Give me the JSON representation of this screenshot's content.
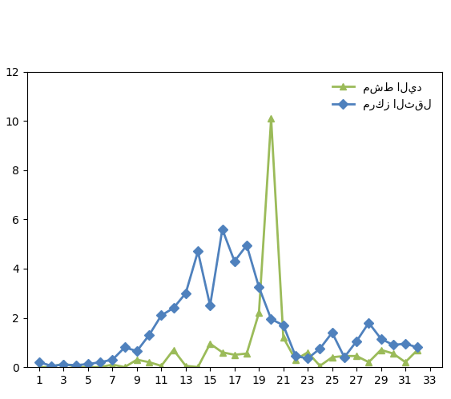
{
  "chart_data": {
    "type": "line",
    "x": [
      1,
      2,
      3,
      4,
      5,
      6,
      7,
      8,
      9,
      10,
      11,
      12,
      13,
      14,
      15,
      16,
      17,
      18,
      19,
      20,
      21,
      22,
      23,
      24,
      25,
      26,
      27,
      28,
      29,
      30,
      31,
      32
    ],
    "series": [
      {
        "name": "مشط اليد",
        "color": "#9bbb59",
        "marker": "triangle",
        "line_style": "solid",
        "values": [
          0,
          0,
          0.15,
          0,
          0,
          0,
          0.1,
          0,
          0.3,
          0.2,
          0.05,
          0.7,
          0.05,
          0,
          0.95,
          0.6,
          0.5,
          0.55,
          2.2,
          10.1,
          1.2,
          0.3,
          0.6,
          0.05,
          0.4,
          0.45,
          0.45,
          0.2,
          0.7,
          0.55,
          0.2,
          0.7
        ]
      },
      {
        "name": "مركز الثقل",
        "color": "#4f81bd",
        "marker": "diamond",
        "line_style": "solid",
        "values": [
          0.2,
          0.05,
          0.1,
          0.08,
          0.12,
          0.2,
          0.3,
          0.8,
          0.65,
          1.3,
          2.1,
          2.4,
          3.0,
          4.7,
          2.5,
          5.6,
          4.3,
          4.95,
          3.25,
          1.95,
          1.7,
          0.45,
          0.35,
          0.75,
          1.4,
          0.4,
          1.05,
          1.8,
          1.15,
          0.9,
          0.95,
          0.8
        ]
      }
    ],
    "xlim": [
      0,
      34
    ],
    "xticks": [
      1,
      3,
      5,
      7,
      9,
      11,
      13,
      15,
      17,
      19,
      21,
      23,
      25,
      27,
      29,
      31,
      33
    ],
    "ylim": [
      0,
      12
    ],
    "yticks": [
      0,
      2,
      4,
      6,
      8,
      10,
      12
    ],
    "grid": false,
    "legend": "upper right"
  }
}
